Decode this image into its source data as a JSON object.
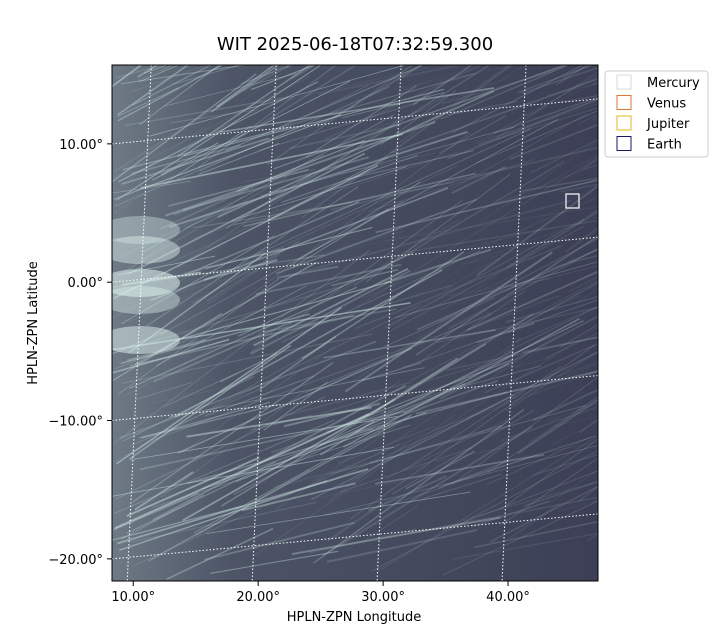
{
  "chart_data": {
    "type": "image",
    "title": "WIT 2025-06-18T07:32:59.300",
    "xlabel": "HPLN-ZPN Longitude",
    "ylabel": "HPLN-ZPN Latitude",
    "xlim": [
      8.3,
      47.2
    ],
    "ylim": [
      -21.6,
      15.7
    ],
    "xticks": [
      {
        "value": 10,
        "label": "10.00°"
      },
      {
        "value": 20,
        "label": "20.00°"
      },
      {
        "value": 30,
        "label": "30.00°"
      },
      {
        "value": 40,
        "label": "40.00°"
      }
    ],
    "yticks": [
      {
        "value": 10,
        "label": "10.00°"
      },
      {
        "value": 0,
        "label": "0.00°"
      },
      {
        "value": -10,
        "label": "−10.00°"
      },
      {
        "value": -20,
        "label": "−20.00°"
      }
    ],
    "grid": true,
    "legend": "upper right outside",
    "series": [
      {
        "name": "Mercury",
        "color": "#d9d9d9"
      },
      {
        "name": "Venus",
        "color": "#e0733a"
      },
      {
        "name": "Jupiter",
        "color": "#e8b323"
      },
      {
        "name": "Earth",
        "color": "#15156e"
      }
    ]
  }
}
